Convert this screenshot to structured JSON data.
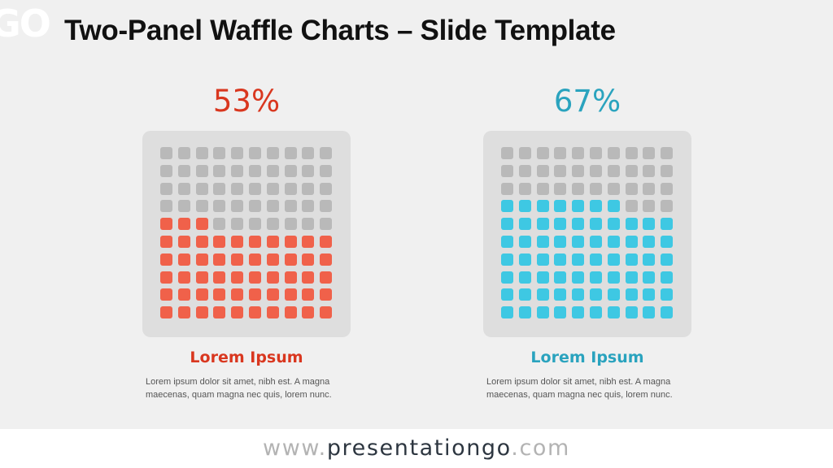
{
  "header": {
    "logo": "GO",
    "title": "Two-Panel Waffle Charts – Slide Template"
  },
  "chart_data": [
    {
      "type": "waffle",
      "title": "53%",
      "value_percent": 53,
      "grid": [
        10,
        10
      ],
      "fill_order": "bottom-to-top, left-to-right",
      "filled_color": "#f0614a",
      "empty_color": "#b9b9b9",
      "label_color": "#d9371f",
      "heading": "Lorem Ipsum",
      "description": "Lorem ipsum dolor sit amet, nibh est. A magna maecenas, quam magna nec quis, lorem nunc."
    },
    {
      "type": "waffle",
      "title": "67%",
      "value_percent": 67,
      "grid": [
        10,
        10
      ],
      "fill_order": "bottom-to-top, left-to-right",
      "filled_color": "#3ec8e3",
      "empty_color": "#b9b9b9",
      "label_color": "#2aa3be",
      "heading": "Lorem Ipsum",
      "description": "Lorem ipsum dolor sit amet, nibh est. A magna maecenas, quam magna nec quis, lorem nunc."
    }
  ],
  "footer": {
    "prefix": "www.",
    "brand": "presentationgo",
    "suffix": ".com"
  }
}
